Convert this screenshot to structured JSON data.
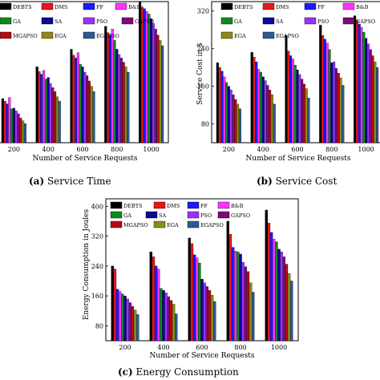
{
  "series": [
    {
      "name": "DEBTS",
      "color": "#000000"
    },
    {
      "name": "DMS",
      "color": "#e8151b"
    },
    {
      "name": "FF",
      "color": "#1a1aff"
    },
    {
      "name": "B&B",
      "color": "#ff33ff"
    },
    {
      "name": "GA",
      "color": "#0f8a1e"
    },
    {
      "name": "SA",
      "color": "#0a0a96"
    },
    {
      "name": "PSO",
      "color": "#9933ff"
    },
    {
      "name": "GAPSO",
      "color": "#7d0a78"
    },
    {
      "name": "MGAPSO",
      "color": "#b8090f"
    },
    {
      "name": "EGA",
      "color": "#8c8c14"
    },
    {
      "name": "EGAPSO",
      "color": "#2b5a99"
    }
  ],
  "chart_data": [
    {
      "type": "bar",
      "categories": [
        "200",
        "400",
        "600",
        "800",
        "1000"
      ],
      "xlabel": "Number of Service Requests",
      "ylabel": "",
      "ylim": [
        0,
        400
      ],
      "legend": "top-left",
      "caption_letter": "(a)",
      "caption": "Service Time",
      "series": [
        {
          "name": "DEBTS",
          "values": [
            125,
            215,
            265,
            330,
            410
          ]
        },
        {
          "name": "DMS",
          "values": [
            118,
            202,
            248,
            312,
            385
          ]
        },
        {
          "name": "FF",
          "values": [
            110,
            194,
            240,
            305,
            380
          ]
        },
        {
          "name": "B&B",
          "values": [
            128,
            205,
            255,
            322,
            372
          ]
        },
        {
          "name": "GA",
          "values": [
            96,
            180,
            222,
            290,
            365
          ]
        },
        {
          "name": "SA",
          "values": [
            98,
            185,
            215,
            265,
            352
          ]
        },
        {
          "name": "PSO",
          "values": [
            90,
            168,
            200,
            250,
            338
          ]
        },
        {
          "name": "GAPSO",
          "values": [
            82,
            156,
            190,
            240,
            322
          ]
        },
        {
          "name": "MGAPSO",
          "values": [
            70,
            145,
            175,
            228,
            305
          ]
        },
        {
          "name": "EGA",
          "values": [
            62,
            130,
            160,
            215,
            290
          ]
        },
        {
          "name": "EGAPSO",
          "values": [
            54,
            118,
            145,
            200,
            275
          ]
        }
      ]
    },
    {
      "type": "bar",
      "categories": [
        "200",
        "400",
        "600",
        "800",
        "1000"
      ],
      "xlabel": "Number of Service Requests",
      "ylabel": "Service Cost in $",
      "ylim": [
        40,
        340
      ],
      "yticks": [
        80,
        160,
        240,
        320
      ],
      "legend": "top-left",
      "caption_letter": "(b)",
      "caption": "Service Cost",
      "series": [
        {
          "name": "DEBTS",
          "values": [
            210,
            232,
            268,
            290,
            310
          ]
        },
        {
          "name": "DMS",
          "values": [
            200,
            222,
            235,
            268,
            300
          ]
        },
        {
          "name": "FF",
          "values": [
            192,
            212,
            225,
            260,
            292
          ]
        },
        {
          "name": "B&B",
          "values": [
            180,
            196,
            218,
            252,
            285
          ]
        },
        {
          "name": "GA",
          "values": [
            168,
            190,
            205,
            238,
            275
          ]
        },
        {
          "name": "SA",
          "values": [
            160,
            180,
            195,
            210,
            262
          ]
        },
        {
          "name": "PSO",
          "values": [
            152,
            172,
            185,
            212,
            250
          ]
        },
        {
          "name": "GAPSO",
          "values": [
            142,
            162,
            175,
            198,
            238
          ]
        },
        {
          "name": "MGAPSO",
          "values": [
            132,
            152,
            165,
            188,
            225
          ]
        },
        {
          "name": "EGA",
          "values": [
            122,
            142,
            155,
            178,
            212
          ]
        },
        {
          "name": "EGAPSO",
          "values": [
            112,
            122,
            135,
            162,
            200
          ]
        }
      ]
    },
    {
      "type": "bar",
      "categories": [
        "200",
        "400",
        "600",
        "800",
        "1000"
      ],
      "xlabel": "Number of Service Requests",
      "ylabel": "Energy Consumption in Joules",
      "ylim": [
        40,
        420
      ],
      "yticks": [
        80,
        160,
        240,
        320,
        400
      ],
      "legend": "top-left",
      "caption_letter": "(c)",
      "caption": "Energy Consumption",
      "series": [
        {
          "name": "DEBTS",
          "values": [
            240,
            278,
            315,
            360,
            390
          ]
        },
        {
          "name": "DMS",
          "values": [
            232,
            265,
            300,
            325,
            355
          ]
        },
        {
          "name": "FF",
          "values": [
            178,
            240,
            270,
            290,
            330
          ]
        },
        {
          "name": "B&B",
          "values": [
            172,
            232,
            262,
            280,
            312
          ]
        },
        {
          "name": "GA",
          "values": [
            165,
            180,
            248,
            278,
            305
          ]
        },
        {
          "name": "SA",
          "values": [
            160,
            175,
            205,
            272,
            285
          ]
        },
        {
          "name": "PSO",
          "values": [
            152,
            168,
            195,
            250,
            278
          ]
        },
        {
          "name": "GAPSO",
          "values": [
            142,
            158,
            185,
            238,
            265
          ]
        },
        {
          "name": "MGAPSO",
          "values": [
            132,
            148,
            175,
            225,
            245
          ]
        },
        {
          "name": "EGA",
          "values": [
            122,
            138,
            162,
            195,
            220
          ]
        },
        {
          "name": "EGAPSO",
          "values": [
            110,
            112,
            145,
            170,
            200
          ]
        }
      ]
    }
  ]
}
